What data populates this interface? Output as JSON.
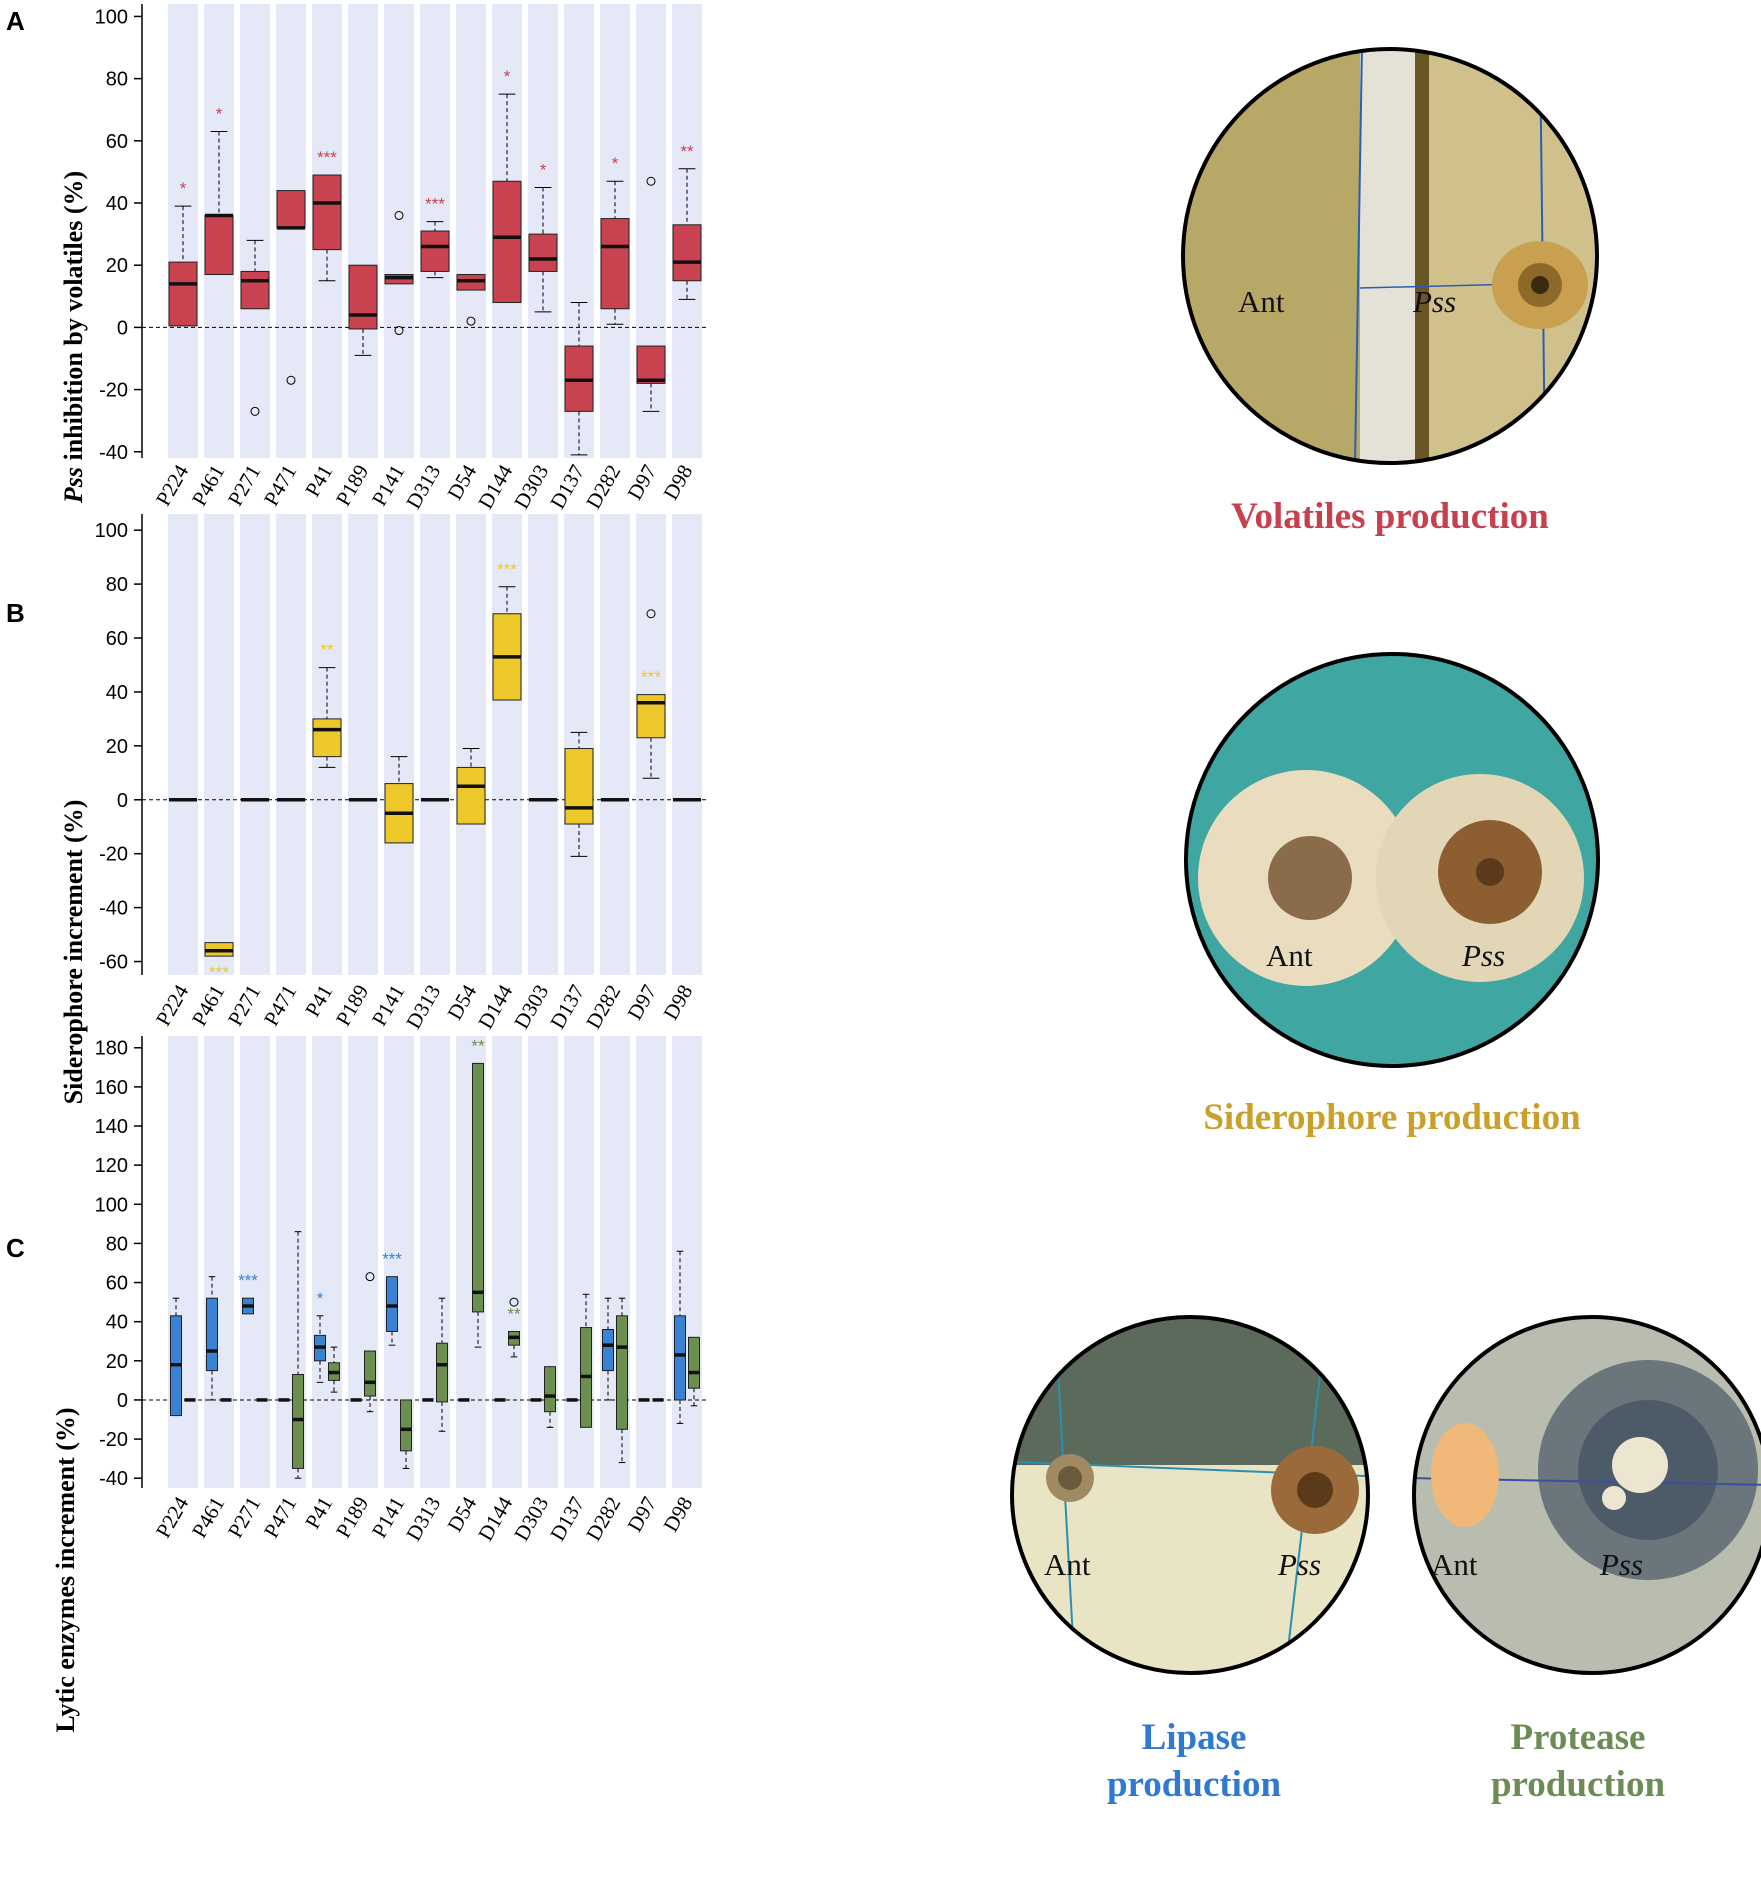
{
  "colors": {
    "volatiles": "#c9424f",
    "siderophore": "#edc82b",
    "lipase": "#3a82d4",
    "protease": "#6b8f4e",
    "stripe": "#e5e9f7",
    "cap_volatiles": "#c7404e",
    "cap_siderophore": "#c9a02a",
    "cap_lipase": "#2f7ad0",
    "cap_protease": "#6d8c55"
  },
  "photos": {
    "volatiles": {
      "left_label": "Ant",
      "right_label": "Pss",
      "caption": "Volatiles production"
    },
    "siderophore": {
      "left_label": "Ant",
      "right_label": "Pss",
      "caption": "Siderophore production"
    },
    "lipase": {
      "left_label": "Ant",
      "right_label": "Pss",
      "caption_line1": "Lipase",
      "caption_line2": "production"
    },
    "protease": {
      "left_label": "Ant",
      "right_label": "Pss",
      "caption_line1": "Protease",
      "caption_line2": "production"
    }
  },
  "chart_data": [
    {
      "panel": "A",
      "type": "box",
      "ylabel_italic": "Pss",
      "ylabel_rest": " inhibition by volatiles (%)",
      "categories": [
        "P224",
        "P461",
        "P271",
        "P471",
        "P41",
        "P189",
        "P141",
        "D313",
        "D54",
        "D144",
        "D303",
        "D137",
        "D282",
        "D97",
        "D98"
      ],
      "ylim": [
        -42,
        104
      ],
      "yticks": [
        100,
        80,
        60,
        40,
        20,
        0,
        -20,
        -40
      ],
      "series": [
        {
          "name": "Volatiles",
          "color_key": "volatiles",
          "boxes": [
            {
              "min": 0.5,
              "q1": 0.5,
              "median": 14,
              "q3": 21,
              "max": 39,
              "outliers": [],
              "sig": "*"
            },
            {
              "min": 17,
              "q1": 17,
              "median": 36,
              "q3": 36,
              "max": 63,
              "outliers": [],
              "sig": "*"
            },
            {
              "min": 6,
              "q1": 6,
              "median": 15,
              "q3": 18,
              "max": 28,
              "outliers": [
                -27
              ],
              "sig": ""
            },
            {
              "min": 32,
              "q1": 32,
              "median": 32,
              "q3": 44,
              "max": 44,
              "outliers": [
                -17
              ],
              "sig": ""
            },
            {
              "min": 15,
              "q1": 25,
              "median": 40,
              "q3": 49,
              "max": 49,
              "outliers": [],
              "sig": "***"
            },
            {
              "min": -9,
              "q1": -0.5,
              "median": 4,
              "q3": 20,
              "max": 20,
              "outliers": [],
              "sig": ""
            },
            {
              "min": 14,
              "q1": 14,
              "median": 16,
              "q3": 17,
              "max": 17,
              "outliers": [
                36,
                -1
              ],
              "sig": ""
            },
            {
              "min": 16,
              "q1": 18,
              "median": 26,
              "q3": 31,
              "max": 34,
              "outliers": [],
              "sig": "***"
            },
            {
              "min": 12,
              "q1": 12,
              "median": 15,
              "q3": 17,
              "max": 17,
              "outliers": [
                2
              ],
              "sig": ""
            },
            {
              "min": 8,
              "q1": 8,
              "median": 29,
              "q3": 47,
              "max": 75,
              "outliers": [],
              "sig": "*"
            },
            {
              "min": 5,
              "q1": 18,
              "median": 22,
              "q3": 30,
              "max": 45,
              "outliers": [],
              "sig": "*"
            },
            {
              "min": -41,
              "q1": -27,
              "median": -17,
              "q3": -6,
              "max": 8,
              "outliers": [],
              "sig": ""
            },
            {
              "min": 1,
              "q1": 6,
              "median": 26,
              "q3": 35,
              "max": 47,
              "outliers": [],
              "sig": "*"
            },
            {
              "min": -27,
              "q1": -18,
              "median": -17,
              "q3": -6,
              "max": -6,
              "outliers": [
                47
              ],
              "sig": ""
            },
            {
              "min": 9,
              "q1": 15,
              "median": 21,
              "q3": 33,
              "max": 51,
              "outliers": [],
              "sig": "**"
            }
          ]
        }
      ]
    },
    {
      "panel": "B",
      "type": "box",
      "ylabel_italic": "",
      "ylabel_rest": "Siderophore increment (%)",
      "categories": [
        "P224",
        "P461",
        "P271",
        "P471",
        "P41",
        "P189",
        "P141",
        "D313",
        "D54",
        "D144",
        "D303",
        "D137",
        "D282",
        "D97",
        "D98"
      ],
      "ylim": [
        -65,
        106
      ],
      "yticks": [
        100,
        80,
        60,
        40,
        20,
        0,
        -20,
        -40,
        -60
      ],
      "series": [
        {
          "name": "Siderophore",
          "color_key": "siderophore",
          "boxes": [
            {
              "min": 0,
              "q1": 0,
              "median": 0,
              "q3": 0,
              "max": 0,
              "outliers": [],
              "sig": ""
            },
            {
              "min": -58,
              "q1": -58,
              "median": -56,
              "q3": -53,
              "max": -53,
              "outliers": [],
              "sig": "***",
              "sig_below": true
            },
            {
              "min": 0,
              "q1": 0,
              "median": 0,
              "q3": 0,
              "max": 0,
              "outliers": [],
              "sig": ""
            },
            {
              "min": 0,
              "q1": 0,
              "median": 0,
              "q3": 0,
              "max": 0,
              "outliers": [],
              "sig": ""
            },
            {
              "min": 12,
              "q1": 16,
              "median": 26,
              "q3": 30,
              "max": 49,
              "outliers": [],
              "sig": "**"
            },
            {
              "min": 0,
              "q1": 0,
              "median": 0,
              "q3": 0,
              "max": 0,
              "outliers": [],
              "sig": ""
            },
            {
              "min": -16,
              "q1": -16,
              "median": -5,
              "q3": 6,
              "max": 16,
              "outliers": [],
              "sig": ""
            },
            {
              "min": 0,
              "q1": 0,
              "median": 0,
              "q3": 0,
              "max": 0,
              "outliers": [],
              "sig": ""
            },
            {
              "min": -9,
              "q1": -9,
              "median": 5,
              "q3": 12,
              "max": 19,
              "outliers": [],
              "sig": ""
            },
            {
              "min": 37,
              "q1": 37,
              "median": 53,
              "q3": 69,
              "max": 79,
              "outliers": [],
              "sig": "***"
            },
            {
              "min": 0,
              "q1": 0,
              "median": 0,
              "q3": 0,
              "max": 0,
              "outliers": [],
              "sig": ""
            },
            {
              "min": -21,
              "q1": -9,
              "median": -3,
              "q3": 19,
              "max": 25,
              "outliers": [],
              "sig": ""
            },
            {
              "min": 0,
              "q1": 0,
              "median": 0,
              "q3": 0,
              "max": 0,
              "outliers": [],
              "sig": ""
            },
            {
              "min": 8,
              "q1": 23,
              "median": 36,
              "q3": 39,
              "max": 39,
              "outliers": [
                69
              ],
              "sig": "***"
            },
            {
              "min": 0,
              "q1": 0,
              "median": 0,
              "q3": 0,
              "max": 0,
              "outliers": [],
              "sig": ""
            }
          ]
        }
      ]
    },
    {
      "panel": "C",
      "type": "box",
      "ylabel_italic": "",
      "ylabel_rest": "Lytic enzymes increment (%)",
      "categories": [
        "P224",
        "P461",
        "P271",
        "P471",
        "P41",
        "P189",
        "P141",
        "D313",
        "D54",
        "D144",
        "D303",
        "D137",
        "D282",
        "D97",
        "D98"
      ],
      "ylim": [
        -45,
        186
      ],
      "yticks": [
        180,
        160,
        140,
        120,
        100,
        80,
        60,
        40,
        20,
        0,
        -20,
        -40
      ],
      "series": [
        {
          "name": "Lipase",
          "color_key": "lipase",
          "boxes": [
            {
              "min": -8,
              "q1": -8,
              "median": 18,
              "q3": 43,
              "max": 52,
              "outliers": [],
              "sig": ""
            },
            {
              "min": 0,
              "q1": 15,
              "median": 25,
              "q3": 52,
              "max": 63,
              "outliers": [],
              "sig": ""
            },
            {
              "min": 44,
              "q1": 44,
              "median": 48,
              "q3": 52,
              "max": 52,
              "outliers": [],
              "sig": "***"
            },
            {
              "min": 0,
              "q1": 0,
              "median": 0,
              "q3": 0,
              "max": 0,
              "outliers": [],
              "sig": ""
            },
            {
              "min": 9,
              "q1": 20,
              "median": 27,
              "q3": 33,
              "max": 43,
              "outliers": [],
              "sig": "*"
            },
            {
              "min": 0,
              "q1": 0,
              "median": 0,
              "q3": 0,
              "max": 0,
              "outliers": [],
              "sig": ""
            },
            {
              "min": 28,
              "q1": 35,
              "median": 48,
              "q3": 63,
              "max": 63,
              "outliers": [],
              "sig": "***"
            },
            {
              "min": 0,
              "q1": 0,
              "median": 0,
              "q3": 0,
              "max": 0,
              "outliers": [],
              "sig": ""
            },
            {
              "min": 0,
              "q1": 0,
              "median": 0,
              "q3": 0,
              "max": 0,
              "outliers": [],
              "sig": ""
            },
            {
              "min": 0,
              "q1": 0,
              "median": 0,
              "q3": 0,
              "max": 0,
              "outliers": [],
              "sig": ""
            },
            {
              "min": 0,
              "q1": 0,
              "median": 0,
              "q3": 0,
              "max": 0,
              "outliers": [],
              "sig": ""
            },
            {
              "min": 0,
              "q1": 0,
              "median": 0,
              "q3": 0,
              "max": 0,
              "outliers": [],
              "sig": ""
            },
            {
              "min": 0,
              "q1": 15,
              "median": 28,
              "q3": 36,
              "max": 52,
              "outliers": [],
              "sig": ""
            },
            {
              "min": 0,
              "q1": 0,
              "median": 0,
              "q3": 0,
              "max": 0,
              "outliers": [],
              "sig": ""
            },
            {
              "min": -12,
              "q1": 0,
              "median": 23,
              "q3": 43,
              "max": 76,
              "outliers": [],
              "sig": ""
            }
          ]
        },
        {
          "name": "Protease",
          "color_key": "protease",
          "boxes": [
            {
              "min": 0,
              "q1": 0,
              "median": 0,
              "q3": 0,
              "max": 0,
              "outliers": [],
              "sig": ""
            },
            {
              "min": 0,
              "q1": 0,
              "median": 0,
              "q3": 0,
              "max": 0,
              "outliers": [],
              "sig": ""
            },
            {
              "min": 0,
              "q1": 0,
              "median": 0,
              "q3": 0,
              "max": 0,
              "outliers": [],
              "sig": ""
            },
            {
              "min": -40,
              "q1": -35,
              "median": -10,
              "q3": 13,
              "max": 86,
              "outliers": [],
              "sig": ""
            },
            {
              "min": 4,
              "q1": 10,
              "median": 14,
              "q3": 19,
              "max": 27,
              "outliers": [],
              "sig": ""
            },
            {
              "min": -6,
              "q1": 2,
              "median": 9,
              "q3": 25,
              "max": 25,
              "outliers": [
                63
              ],
              "sig": ""
            },
            {
              "min": -35,
              "q1": -26,
              "median": -15,
              "q3": 0,
              "max": 0,
              "outliers": [],
              "sig": ""
            },
            {
              "min": -16,
              "q1": -1,
              "median": 18,
              "q3": 29,
              "max": 52,
              "outliers": [],
              "sig": ""
            },
            {
              "min": 27,
              "q1": 45,
              "median": 55,
              "q3": 172,
              "max": 172,
              "outliers": [],
              "sig": "**"
            },
            {
              "min": 22,
              "q1": 28,
              "median": 32,
              "q3": 35,
              "max": 35,
              "outliers": [
                50
              ],
              "sig": "**"
            },
            {
              "min": -14,
              "q1": -6,
              "median": 2,
              "q3": 17,
              "max": 17,
              "outliers": [],
              "sig": ""
            },
            {
              "min": -14,
              "q1": -14,
              "median": 12,
              "q3": 37,
              "max": 54,
              "outliers": [],
              "sig": ""
            },
            {
              "min": -32,
              "q1": -15,
              "median": 27,
              "q3": 43,
              "max": 52,
              "outliers": [],
              "sig": ""
            },
            {
              "min": 0,
              "q1": 0,
              "median": 0,
              "q3": 0,
              "max": 0,
              "outliers": [],
              "sig": ""
            },
            {
              "min": -3,
              "q1": 6,
              "median": 14,
              "q3": 32,
              "max": 32,
              "outliers": [],
              "sig": ""
            }
          ]
        }
      ]
    }
  ]
}
